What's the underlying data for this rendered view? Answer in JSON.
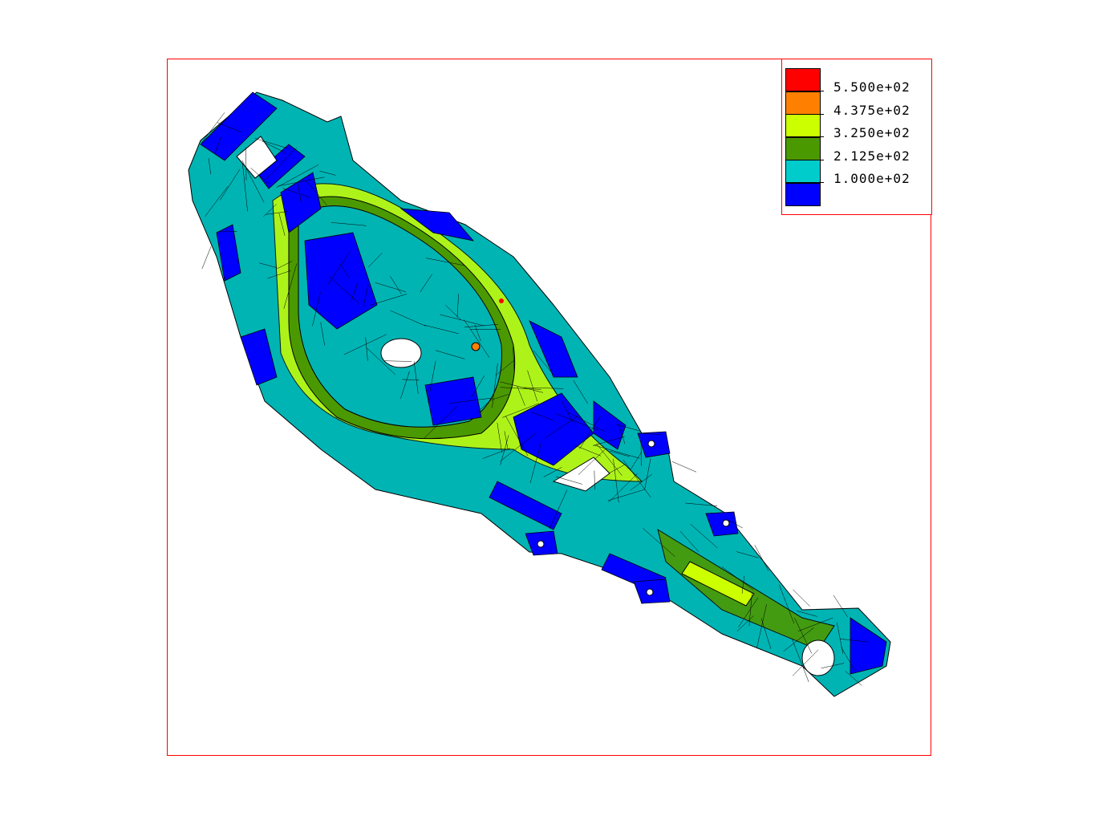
{
  "legend": {
    "colors": [
      "#ff0000",
      "#ff8000",
      "#ccff00",
      "#4b9900",
      "#00cccc",
      "#0000ff"
    ],
    "labels": [
      "5.500e+02",
      "4.375e+02",
      "3.250e+02",
      "2.125e+02",
      "1.000e+02"
    ]
  },
  "model": {
    "base_color": "#00b4b4",
    "low_color": "#0000ff",
    "mid_color": "#4b9900",
    "high_color": "#ccff00",
    "peak_color": "#ff8000"
  }
}
